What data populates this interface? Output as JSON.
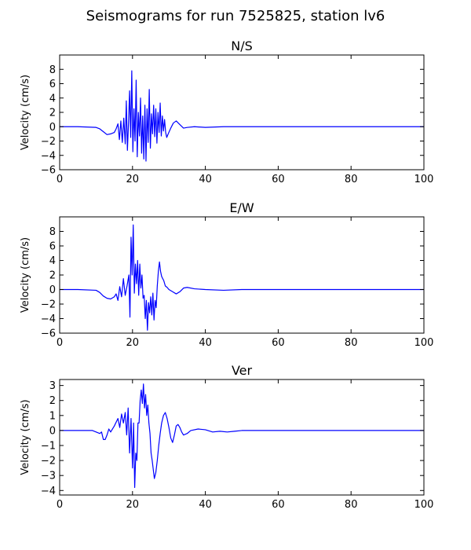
{
  "figure": {
    "title": "Seismograms for run 7525825, station lv6"
  },
  "chart_data": [
    {
      "type": "line",
      "title": "N/S",
      "xlabel": "",
      "ylabel": "Velocity (cm/s)",
      "xlim": [
        0,
        100
      ],
      "ylim": [
        -6,
        10
      ],
      "xticks": [
        0,
        20,
        40,
        60,
        80,
        100
      ],
      "yticks": [
        -6,
        -4,
        -2,
        0,
        2,
        4,
        6,
        8
      ],
      "grid": false,
      "color": "#0000ff",
      "series": [
        {
          "x": [
            0,
            5,
            10,
            11,
            12,
            13,
            14,
            15,
            15.5,
            16,
            16.4,
            16.8,
            17.2,
            17.6,
            18,
            18.3,
            18.6,
            18.9,
            19.2,
            19.5,
            19.8,
            20.1,
            20.4,
            20.7,
            21,
            21.3,
            21.6,
            21.9,
            22.2,
            22.5,
            22.8,
            23.1,
            23.4,
            23.7,
            24,
            24.3,
            24.6,
            24.9,
            25.2,
            25.5,
            25.8,
            26.1,
            26.4,
            26.7,
            27,
            27.3,
            27.6,
            27.9,
            28.2,
            28.5,
            28.8,
            29.1,
            29.4,
            29.8,
            30.5,
            31.2,
            32,
            33,
            34,
            35,
            37,
            40,
            45,
            50,
            60,
            70,
            80,
            90,
            100
          ],
          "y": [
            0,
            0,
            -0.1,
            -0.3,
            -0.7,
            -1.1,
            -1.0,
            -0.8,
            -0.3,
            0.4,
            -1.8,
            0.8,
            -2.2,
            1.2,
            -2.4,
            3.6,
            -3.3,
            0.5,
            5.0,
            -1.5,
            7.8,
            -3.5,
            2.5,
            -2.0,
            6.5,
            -4.2,
            2.0,
            -1.3,
            4.0,
            -3.7,
            1.5,
            -4.5,
            3.0,
            -4.8,
            2.5,
            -2.2,
            5.2,
            -3.0,
            1.8,
            -1.0,
            3.0,
            -1.4,
            2.5,
            -2.3,
            2.0,
            -0.8,
            3.3,
            -1.3,
            1.5,
            -0.6,
            1.0,
            -0.8,
            -1.5,
            -1.0,
            -0.2,
            0.5,
            0.8,
            0.3,
            -0.2,
            -0.1,
            0,
            -0.1,
            0,
            0,
            0,
            0,
            0,
            0,
            0
          ]
        }
      ]
    },
    {
      "type": "line",
      "title": "E/W",
      "xlabel": "",
      "ylabel": "Velocity (cm/s)",
      "xlim": [
        0,
        100
      ],
      "ylim": [
        -6,
        10
      ],
      "xticks": [
        0,
        20,
        40,
        60,
        80,
        100
      ],
      "yticks": [
        -6,
        -4,
        -2,
        0,
        2,
        4,
        6,
        8
      ],
      "grid": false,
      "color": "#0000ff",
      "series": [
        {
          "x": [
            0,
            5,
            10,
            11,
            12,
            13,
            14,
            15,
            15.5,
            16,
            16.5,
            17,
            17.5,
            18,
            18.5,
            19,
            19.3,
            19.6,
            19.9,
            20.2,
            20.5,
            20.8,
            21.1,
            21.4,
            21.7,
            22,
            22.3,
            22.6,
            22.9,
            23.2,
            23.5,
            23.8,
            24.1,
            24.4,
            24.7,
            25,
            25.3,
            25.6,
            25.9,
            26.2,
            26.5,
            26.8,
            27.1,
            27.4,
            27.7,
            28,
            28.3,
            28.6,
            29,
            29.5,
            30,
            31,
            32,
            33,
            34,
            35,
            37,
            40,
            45,
            50,
            60,
            70,
            80,
            90,
            100
          ],
          "y": [
            0,
            0,
            -0.1,
            -0.4,
            -0.9,
            -1.2,
            -1.3,
            -1.0,
            -0.6,
            -1.5,
            0.4,
            -1.0,
            1.5,
            -0.8,
            0.5,
            2.0,
            -3.8,
            7.2,
            2.0,
            8.9,
            -0.5,
            3.5,
            0.8,
            4.0,
            -0.8,
            3.5,
            0.2,
            2.0,
            -1.2,
            -0.8,
            -4.0,
            -1.5,
            -5.6,
            -1.8,
            -3.2,
            -1.0,
            -3.5,
            -0.5,
            -4.2,
            -1.5,
            -2.5,
            0.5,
            2.5,
            3.8,
            2.5,
            1.8,
            1.5,
            1.2,
            0.5,
            0.3,
            0,
            -0.3,
            -0.6,
            -0.3,
            0.2,
            0.3,
            0.1,
            0,
            -0.1,
            0,
            0,
            0,
            0,
            0,
            0
          ]
        }
      ]
    },
    {
      "type": "line",
      "title": "Ver",
      "xlabel": "",
      "ylabel": "Velocity (cm/s)",
      "xlim": [
        0,
        100
      ],
      "ylim": [
        -4.3,
        3.4
      ],
      "xticks": [
        0,
        20,
        40,
        60,
        80,
        100
      ],
      "yticks": [
        -4,
        -3,
        -2,
        -1,
        0,
        1,
        2,
        3
      ],
      "grid": false,
      "color": "#0000ff",
      "series": [
        {
          "x": [
            0,
            5,
            9,
            10,
            11,
            11.5,
            12,
            12.5,
            13,
            13.5,
            14,
            15,
            16,
            16.5,
            17,
            17.5,
            18,
            18.4,
            18.8,
            19.2,
            19.6,
            20,
            20.3,
            20.6,
            20.9,
            21.2,
            21.5,
            21.8,
            22.1,
            22.4,
            22.7,
            23,
            23.3,
            23.6,
            23.9,
            24.2,
            24.5,
            24.8,
            25.1,
            25.4,
            25.7,
            26,
            26.4,
            26.8,
            27.2,
            27.6,
            28,
            28.5,
            29,
            29.5,
            30,
            30.5,
            31,
            31.5,
            32,
            32.5,
            33,
            33.5,
            34,
            35,
            36,
            38,
            40,
            42,
            44,
            46,
            48,
            50,
            60,
            70,
            80,
            90,
            100
          ],
          "y": [
            0,
            0,
            0,
            -0.1,
            -0.2,
            -0.1,
            -0.6,
            -0.6,
            -0.3,
            0.1,
            -0.1,
            0.3,
            0.8,
            0.2,
            1.1,
            0.5,
            1.2,
            -0.3,
            1.5,
            -1.5,
            0.8,
            -2.5,
            0.5,
            -3.8,
            -1.5,
            -2.0,
            0.5,
            0.5,
            2.0,
            2.7,
            1.8,
            3.1,
            1.5,
            2.4,
            1.0,
            1.7,
            0.5,
            -0.2,
            -1.5,
            -2.0,
            -2.6,
            -3.2,
            -2.8,
            -2.0,
            -1.0,
            -0.2,
            0.5,
            1.0,
            1.2,
            0.8,
            0.2,
            -0.5,
            -0.8,
            -0.3,
            0.3,
            0.4,
            0.2,
            -0.1,
            -0.3,
            -0.2,
            0,
            0.1,
            0.05,
            -0.1,
            -0.05,
            -0.1,
            -0.05,
            0,
            0,
            0,
            0,
            0,
            0
          ]
        }
      ]
    }
  ]
}
